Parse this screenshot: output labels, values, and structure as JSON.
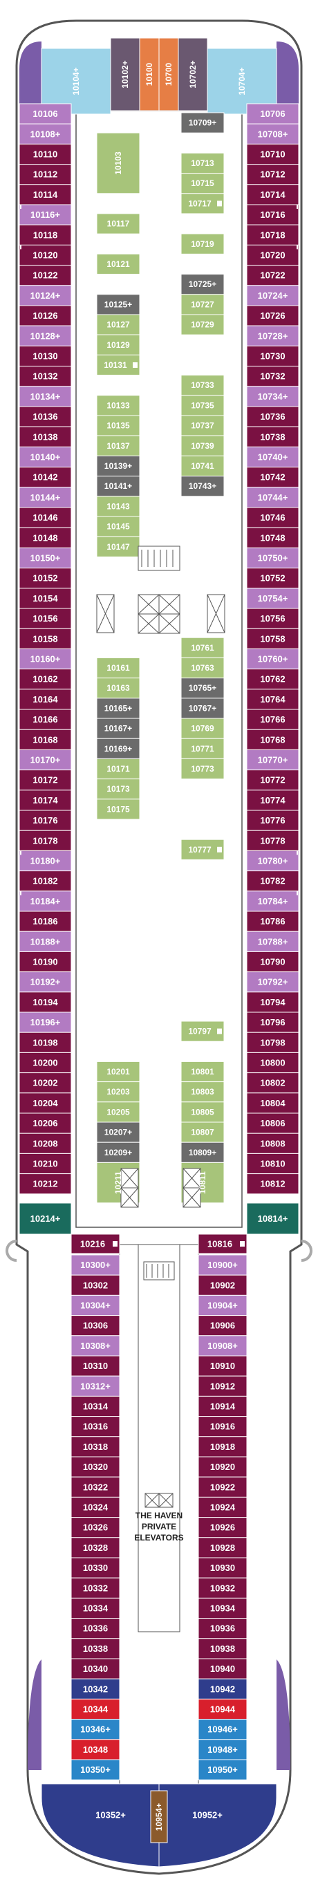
{
  "colors": {
    "maroon": "#7a1142",
    "pink": "#b27bc2",
    "inside": "#a7c47a",
    "gray": "#6b6b6b",
    "teal": "#1a6b5d",
    "lightblue": "#9cd3e8",
    "purple": "#7a5ca8",
    "orange": "#e67e45",
    "darkgray": "#6a5870",
    "red": "#d81f2c",
    "blue": "#2a86c8",
    "navy": "#2f3d8c",
    "brown": "#8b5a2b",
    "hull": "#ffffff",
    "outline": "#555555"
  },
  "top": {
    "cabins": [
      {
        "label": "10104+",
        "fill": "lightblue"
      },
      {
        "label": "10102+",
        "fill": "darkgray"
      },
      {
        "label": "10100",
        "fill": "orange"
      },
      {
        "label": "10700",
        "fill": "orange"
      },
      {
        "label": "10702+",
        "fill": "darkgray"
      },
      {
        "label": "10704+",
        "fill": "lightblue"
      }
    ]
  },
  "left_column": [
    {
      "label": "10106",
      "fill": "pink"
    },
    {
      "label": "10108+",
      "fill": "pink"
    },
    {
      "label": "10110",
      "fill": "maroon"
    },
    {
      "label": "10112",
      "fill": "maroon"
    },
    {
      "label": "10114",
      "fill": "maroon",
      "connector": true
    },
    {
      "label": "10116+",
      "fill": "pink"
    },
    {
      "label": "10118",
      "fill": "maroon",
      "connector": true
    },
    {
      "label": "10120",
      "fill": "maroon"
    },
    {
      "label": "10122",
      "fill": "maroon"
    },
    {
      "label": "10124+",
      "fill": "pink"
    },
    {
      "label": "10126",
      "fill": "maroon"
    },
    {
      "label": "10128+",
      "fill": "pink"
    },
    {
      "label": "10130",
      "fill": "maroon"
    },
    {
      "label": "10132",
      "fill": "maroon"
    },
    {
      "label": "10134+",
      "fill": "pink"
    },
    {
      "label": "10136",
      "fill": "maroon"
    },
    {
      "label": "10138",
      "fill": "maroon"
    },
    {
      "label": "10140+",
      "fill": "pink"
    },
    {
      "label": "10142",
      "fill": "maroon"
    },
    {
      "label": "10144+",
      "fill": "pink"
    },
    {
      "label": "10146",
      "fill": "maroon"
    },
    {
      "label": "10148",
      "fill": "maroon"
    },
    {
      "label": "10150+",
      "fill": "pink"
    },
    {
      "label": "10152",
      "fill": "maroon"
    },
    {
      "label": "10154",
      "fill": "maroon"
    },
    {
      "label": "10156",
      "fill": "maroon"
    },
    {
      "label": "10158",
      "fill": "maroon"
    },
    {
      "label": "10160+",
      "fill": "pink"
    },
    {
      "label": "10162",
      "fill": "maroon"
    },
    {
      "label": "10164",
      "fill": "maroon"
    },
    {
      "label": "10166",
      "fill": "maroon"
    },
    {
      "label": "10168",
      "fill": "maroon"
    },
    {
      "label": "10170+",
      "fill": "pink"
    },
    {
      "label": "10172",
      "fill": "maroon"
    },
    {
      "label": "10174",
      "fill": "maroon"
    },
    {
      "label": "10176",
      "fill": "maroon"
    },
    {
      "label": "10178",
      "fill": "maroon",
      "connector": true
    },
    {
      "label": "10180+",
      "fill": "pink"
    },
    {
      "label": "10182",
      "fill": "maroon",
      "connector": true
    },
    {
      "label": "10184+",
      "fill": "pink"
    },
    {
      "label": "10186",
      "fill": "maroon"
    },
    {
      "label": "10188+",
      "fill": "pink"
    },
    {
      "label": "10190",
      "fill": "maroon"
    },
    {
      "label": "10192+",
      "fill": "pink"
    },
    {
      "label": "10194",
      "fill": "maroon"
    },
    {
      "label": "10196+",
      "fill": "pink"
    },
    {
      "label": "10198",
      "fill": "maroon"
    },
    {
      "label": "10200",
      "fill": "maroon"
    },
    {
      "label": "10202",
      "fill": "maroon"
    },
    {
      "label": "10204",
      "fill": "maroon"
    },
    {
      "label": "10206",
      "fill": "maroon"
    },
    {
      "label": "10208",
      "fill": "maroon"
    },
    {
      "label": "10210",
      "fill": "maroon"
    },
    {
      "label": "10212",
      "fill": "maroon"
    }
  ],
  "right_column": [
    {
      "label": "10706",
      "fill": "pink"
    },
    {
      "label": "10708+",
      "fill": "pink"
    },
    {
      "label": "10710",
      "fill": "maroon"
    },
    {
      "label": "10712",
      "fill": "maroon"
    },
    {
      "label": "10714",
      "fill": "maroon",
      "connector": true
    },
    {
      "label": "10716",
      "fill": "maroon"
    },
    {
      "label": "10718",
      "fill": "maroon",
      "connector": true
    },
    {
      "label": "10720",
      "fill": "maroon"
    },
    {
      "label": "10722",
      "fill": "maroon"
    },
    {
      "label": "10724+",
      "fill": "pink"
    },
    {
      "label": "10726",
      "fill": "maroon"
    },
    {
      "label": "10728+",
      "fill": "pink"
    },
    {
      "label": "10730",
      "fill": "maroon"
    },
    {
      "label": "10732",
      "fill": "maroon"
    },
    {
      "label": "10734+",
      "fill": "pink"
    },
    {
      "label": "10736",
      "fill": "maroon"
    },
    {
      "label": "10738",
      "fill": "maroon"
    },
    {
      "label": "10740+",
      "fill": "pink"
    },
    {
      "label": "10742",
      "fill": "maroon"
    },
    {
      "label": "10744+",
      "fill": "pink"
    },
    {
      "label": "10746",
      "fill": "maroon"
    },
    {
      "label": "10748",
      "fill": "maroon"
    },
    {
      "label": "10750+",
      "fill": "pink"
    },
    {
      "label": "10752",
      "fill": "maroon"
    },
    {
      "label": "10754+",
      "fill": "pink"
    },
    {
      "label": "10756",
      "fill": "maroon"
    },
    {
      "label": "10758",
      "fill": "maroon"
    },
    {
      "label": "10760+",
      "fill": "pink"
    },
    {
      "label": "10762",
      "fill": "maroon"
    },
    {
      "label": "10764",
      "fill": "maroon"
    },
    {
      "label": "10766",
      "fill": "maroon"
    },
    {
      "label": "10768",
      "fill": "maroon"
    },
    {
      "label": "10770+",
      "fill": "pink"
    },
    {
      "label": "10772",
      "fill": "maroon"
    },
    {
      "label": "10774",
      "fill": "maroon"
    },
    {
      "label": "10776",
      "fill": "maroon"
    },
    {
      "label": "10778",
      "fill": "maroon",
      "connector": true
    },
    {
      "label": "10780+",
      "fill": "pink"
    },
    {
      "label": "10782",
      "fill": "maroon",
      "connector": true
    },
    {
      "label": "10784+",
      "fill": "pink"
    },
    {
      "label": "10786",
      "fill": "maroon"
    },
    {
      "label": "10788+",
      "fill": "pink"
    },
    {
      "label": "10790",
      "fill": "maroon"
    },
    {
      "label": "10792+",
      "fill": "pink"
    },
    {
      "label": "10794",
      "fill": "maroon"
    },
    {
      "label": "10796",
      "fill": "maroon"
    },
    {
      "label": "10798",
      "fill": "maroon"
    },
    {
      "label": "10800",
      "fill": "maroon"
    },
    {
      "label": "10802",
      "fill": "maroon"
    },
    {
      "label": "10804",
      "fill": "maroon"
    },
    {
      "label": "10806",
      "fill": "maroon"
    },
    {
      "label": "10808",
      "fill": "maroon"
    },
    {
      "label": "10810",
      "fill": "maroon"
    },
    {
      "label": "10812",
      "fill": "maroon"
    }
  ],
  "inner_left": [
    {
      "label": "10103",
      "row": 1,
      "span": 3,
      "vertical": true
    },
    {
      "label": "10117",
      "row": 5
    },
    {
      "label": "10121",
      "row": 7
    },
    {
      "label": "10125+",
      "row": 9,
      "fill": "gray"
    },
    {
      "label": "10127",
      "row": 10
    },
    {
      "label": "10129",
      "row": 11
    },
    {
      "label": "10131",
      "row": 12,
      "wheelchair": true
    },
    {
      "label": "10133",
      "row": 14
    },
    {
      "label": "10135",
      "row": 15
    },
    {
      "label": "10137",
      "row": 16
    },
    {
      "label": "10139+",
      "row": 17,
      "fill": "gray"
    },
    {
      "label": "10141+",
      "row": 18,
      "fill": "gray"
    },
    {
      "label": "10143",
      "row": 19
    },
    {
      "label": "10145",
      "row": 20
    },
    {
      "label": "10147",
      "row": 21
    },
    {
      "label": "10161",
      "row": 27
    },
    {
      "label": "10163",
      "row": 28
    },
    {
      "label": "10165+",
      "row": 29,
      "fill": "gray"
    },
    {
      "label": "10167+",
      "row": 30,
      "fill": "gray"
    },
    {
      "label": "10169+",
      "row": 31,
      "fill": "gray"
    },
    {
      "label": "10171",
      "row": 32
    },
    {
      "label": "10173",
      "row": 33
    },
    {
      "label": "10175",
      "row": 34
    },
    {
      "label": "10201",
      "row": 47
    },
    {
      "label": "10203",
      "row": 48
    },
    {
      "label": "10205",
      "row": 49
    },
    {
      "label": "10207+",
      "row": 50,
      "fill": "gray"
    },
    {
      "label": "10209+",
      "row": 51,
      "fill": "gray"
    },
    {
      "label": "10211",
      "row": 52,
      "span": 2,
      "vertical": true
    }
  ],
  "inner_right": [
    {
      "label": "10709+",
      "row": 0,
      "fill": "gray"
    },
    {
      "label": "10713",
      "row": 2
    },
    {
      "label": "10715",
      "row": 3
    },
    {
      "label": "10717",
      "row": 4,
      "wheelchair": true
    },
    {
      "label": "10719",
      "row": 6
    },
    {
      "label": "10725+",
      "row": 8,
      "fill": "gray"
    },
    {
      "label": "10727",
      "row": 9
    },
    {
      "label": "10729",
      "row": 10
    },
    {
      "label": "10733",
      "row": 13
    },
    {
      "label": "10735",
      "row": 14
    },
    {
      "label": "10737",
      "row": 15
    },
    {
      "label": "10739",
      "row": 16
    },
    {
      "label": "10741",
      "row": 17
    },
    {
      "label": "10743+",
      "row": 18,
      "fill": "gray"
    },
    {
      "label": "10761",
      "row": 26
    },
    {
      "label": "10763",
      "row": 27
    },
    {
      "label": "10765+",
      "row": 28,
      "fill": "gray"
    },
    {
      "label": "10767+",
      "row": 29,
      "fill": "gray"
    },
    {
      "label": "10769",
      "row": 30
    },
    {
      "label": "10771",
      "row": 31
    },
    {
      "label": "10773",
      "row": 32
    },
    {
      "label": "10777",
      "row": 36,
      "wheelchair": true
    },
    {
      "label": "10797",
      "row": 45,
      "wheelchair": true
    },
    {
      "label": "10801",
      "row": 47
    },
    {
      "label": "10803",
      "row": 48
    },
    {
      "label": "10805",
      "row": 49
    },
    {
      "label": "10807",
      "row": 50
    },
    {
      "label": "10809+",
      "row": 51,
      "fill": "gray"
    },
    {
      "label": "10811",
      "row": 52,
      "span": 2,
      "vertical": true
    }
  ],
  "corner": {
    "left": {
      "label": "10214+",
      "fill": "teal"
    },
    "right": {
      "label": "10814+",
      "fill": "teal"
    },
    "left_inner": {
      "label": "10216",
      "wheelchair": true
    },
    "right_inner": {
      "label": "10816",
      "wheelchair": true
    }
  },
  "aft_left": [
    {
      "label": "10300+",
      "fill": "pink"
    },
    {
      "label": "10302",
      "fill": "maroon"
    },
    {
      "label": "10304+",
      "fill": "pink"
    },
    {
      "label": "10306",
      "fill": "maroon"
    },
    {
      "label": "10308+",
      "fill": "pink"
    },
    {
      "label": "10310",
      "fill": "maroon"
    },
    {
      "label": "10312+",
      "fill": "pink"
    },
    {
      "label": "10314",
      "fill": "maroon"
    },
    {
      "label": "10316",
      "fill": "maroon"
    },
    {
      "label": "10318",
      "fill": "maroon"
    },
    {
      "label": "10320",
      "fill": "maroon"
    },
    {
      "label": "10322",
      "fill": "maroon"
    },
    {
      "label": "10324",
      "fill": "maroon",
      "connector": true
    },
    {
      "label": "10326",
      "fill": "maroon"
    },
    {
      "label": "10328",
      "fill": "maroon",
      "connector": true
    },
    {
      "label": "10330",
      "fill": "maroon"
    },
    {
      "label": "10332",
      "fill": "maroon"
    },
    {
      "label": "10334",
      "fill": "maroon"
    },
    {
      "label": "10336",
      "fill": "maroon"
    },
    {
      "label": "10338",
      "fill": "maroon"
    },
    {
      "label": "10340",
      "fill": "maroon"
    },
    {
      "label": "10342",
      "fill": "navy"
    },
    {
      "label": "10344",
      "fill": "red"
    },
    {
      "label": "10346+",
      "fill": "blue"
    },
    {
      "label": "10348",
      "fill": "red"
    },
    {
      "label": "10350+",
      "fill": "blue"
    }
  ],
  "aft_right": [
    {
      "label": "10900+",
      "fill": "pink"
    },
    {
      "label": "10902",
      "fill": "maroon"
    },
    {
      "label": "10904+",
      "fill": "pink"
    },
    {
      "label": "10906",
      "fill": "maroon"
    },
    {
      "label": "10908+",
      "fill": "pink"
    },
    {
      "label": "10910",
      "fill": "maroon"
    },
    {
      "label": "10912",
      "fill": "maroon"
    },
    {
      "label": "10914",
      "fill": "maroon"
    },
    {
      "label": "10916",
      "fill": "maroon"
    },
    {
      "label": "10918",
      "fill": "maroon"
    },
    {
      "label": "10920",
      "fill": "maroon"
    },
    {
      "label": "10922",
      "fill": "maroon"
    },
    {
      "label": "10924",
      "fill": "maroon",
      "connector": true
    },
    {
      "label": "10926",
      "fill": "maroon"
    },
    {
      "label": "10928",
      "fill": "maroon",
      "connector": true
    },
    {
      "label": "10930",
      "fill": "maroon"
    },
    {
      "label": "10932",
      "fill": "maroon"
    },
    {
      "label": "10934",
      "fill": "maroon"
    },
    {
      "label": "10936",
      "fill": "maroon"
    },
    {
      "label": "10938",
      "fill": "maroon"
    },
    {
      "label": "10940",
      "fill": "maroon"
    },
    {
      "label": "10942",
      "fill": "navy"
    },
    {
      "label": "10944",
      "fill": "red"
    },
    {
      "label": "10946+",
      "fill": "blue"
    },
    {
      "label": "10948+",
      "fill": "blue"
    },
    {
      "label": "10950+",
      "fill": "blue"
    }
  ],
  "stern": {
    "left": {
      "label": "10352+",
      "fill": "navy"
    },
    "center": {
      "label": "10954+",
      "fill": "brown"
    },
    "right": {
      "label": "10952+",
      "fill": "navy"
    }
  },
  "haven_elevators": {
    "line1": "THE HAVEN",
    "line2": "PRIVATE",
    "line3": "ELEVATORS"
  }
}
